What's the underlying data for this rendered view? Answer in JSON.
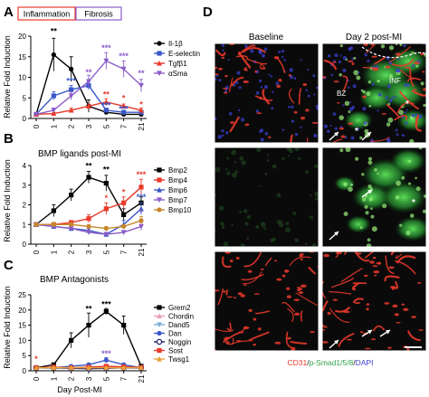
{
  "panels": {
    "A": {
      "letter": "A",
      "box_inflammation": "Inflammation",
      "box_fibrosis": "Fibrosis",
      "ylabel": "Relative Fold Induction"
    },
    "B": {
      "letter": "B",
      "title": "BMP ligands post-MI",
      "ylabel": "Relative Fold Induction"
    },
    "C": {
      "letter": "C",
      "title": "BMP Antagonists",
      "ylabel": "Relative Fold Induction",
      "xlabel": "Day Post-MI"
    },
    "D": {
      "letter": "D",
      "col_baseline": "Baseline",
      "col_day2": "Day 2 post-MI",
      "label_bz": "BZ",
      "label_inf": "INF",
      "caption_cd31": "CD31",
      "caption_sep1": "/",
      "caption_psmad": "p-Smad1/5/8",
      "caption_sep2": "/",
      "caption_dapi": "DAPI"
    }
  },
  "chart_data": [
    {
      "id": "A",
      "type": "line",
      "x": [
        0,
        1,
        2,
        3,
        5,
        7,
        21
      ],
      "ylim": [
        0,
        20
      ],
      "yticks": [
        0,
        5,
        10,
        15,
        20
      ],
      "xlabel": "",
      "ylabel": "Relative Fold Induction",
      "legend_position": "right",
      "series": [
        {
          "name": "Il-1β",
          "color": "#000000",
          "marker": "circle",
          "values": [
            1,
            15.5,
            12,
            3,
            1.5,
            1,
            1
          ],
          "errors": [
            0,
            4,
            3,
            1.5,
            0.5,
            0.3,
            0.3
          ]
        },
        {
          "name": "E-selectin",
          "color": "#3a57c9",
          "marker": "square",
          "values": [
            1,
            5.5,
            7,
            8,
            2,
            1.5,
            1.5
          ],
          "errors": [
            0,
            1,
            1,
            1,
            0.5,
            0.5,
            0.5
          ]
        },
        {
          "name": "Tgfβ1",
          "color": "#e8392a",
          "marker": "triangle",
          "values": [
            1,
            1.2,
            2,
            3,
            4,
            3,
            2
          ],
          "errors": [
            0,
            0.3,
            0.5,
            0.5,
            0.8,
            0.5,
            0.5
          ]
        },
        {
          "name": "αSma",
          "color": "#8b5cc8",
          "marker": "triangle-down",
          "values": [
            1,
            2,
            5.5,
            9,
            14,
            12,
            8
          ],
          "errors": [
            0,
            0.5,
            1,
            1.5,
            2,
            2,
            1.5
          ]
        }
      ],
      "annotations": [
        {
          "x": 1,
          "y": 20.5,
          "text": "**",
          "color": "#000000"
        },
        {
          "x": 2,
          "y": 8.5,
          "text": "***",
          "color": "#3a57c9"
        },
        {
          "x": 3,
          "y": 10.5,
          "text": "**",
          "color": "#8b5cc8"
        },
        {
          "x": 5,
          "y": 16.5,
          "text": "***",
          "color": "#8b5cc8"
        },
        {
          "x": 5,
          "y": 5.2,
          "text": "**",
          "color": "#e8392a"
        },
        {
          "x": 5,
          "y": 2.5,
          "text": "***",
          "color": "#3a57c9"
        },
        {
          "x": 7,
          "y": 14.5,
          "text": "***",
          "color": "#8b5cc8"
        },
        {
          "x": 7,
          "y": 4.3,
          "text": "*",
          "color": "#e8392a"
        },
        {
          "x": 7,
          "y": 1.7,
          "text": "***",
          "color": "#3a57c9"
        },
        {
          "x": 21,
          "y": 10.3,
          "text": "**",
          "color": "#8b5cc8"
        },
        {
          "x": 21,
          "y": 2.8,
          "text": "*",
          "color": "#e8392a"
        }
      ]
    },
    {
      "id": "B",
      "type": "line",
      "x": [
        0,
        1,
        2,
        3,
        5,
        7,
        21
      ],
      "ylim": [
        0,
        4
      ],
      "yticks": [
        0,
        1,
        2,
        3,
        4
      ],
      "xlabel": "",
      "ylabel": "Relative Fold Induction",
      "title": "BMP ligands post-MI",
      "legend_position": "right",
      "series": [
        {
          "name": "Bmp2",
          "color": "#000000",
          "marker": "square",
          "values": [
            1,
            1.7,
            2.5,
            3.4,
            3.1,
            1.5,
            2.1
          ],
          "errors": [
            0,
            0.3,
            0.3,
            0.3,
            0.4,
            0.3,
            0.3
          ]
        },
        {
          "name": "Bmp4",
          "color": "#e8392a",
          "marker": "square",
          "values": [
            1,
            1,
            1.1,
            1.3,
            1.8,
            2.1,
            2.9
          ],
          "errors": [
            0,
            0.1,
            0.1,
            0.2,
            0.3,
            0.3,
            0.4
          ]
        },
        {
          "name": "Bmp6",
          "color": "#3a57c9",
          "marker": "triangle",
          "values": [
            1,
            0.9,
            0.8,
            0.7,
            0.5,
            1.0,
            1.8
          ],
          "errors": [
            0,
            0.1,
            0.1,
            0.1,
            0.1,
            0.2,
            0.3
          ]
        },
        {
          "name": "Bmp7",
          "color": "#8b5cc8",
          "marker": "triangle-down",
          "values": [
            1,
            0.9,
            0.8,
            0.6,
            0.5,
            0.6,
            0.9
          ],
          "errors": [
            0,
            0.1,
            0.1,
            0.1,
            0.1,
            0.1,
            0.2
          ]
        },
        {
          "name": "Bmp10",
          "color": "#c8872d",
          "marker": "circle",
          "values": [
            1,
            1,
            1,
            0.9,
            0.8,
            0.9,
            1.2
          ],
          "errors": [
            0,
            0.1,
            0.1,
            0.1,
            0.1,
            0.1,
            0.2
          ]
        }
      ],
      "annotations": [
        {
          "x": 3,
          "y": 3.85,
          "text": "**",
          "color": "#000000"
        },
        {
          "x": 5,
          "y": 3.65,
          "text": "**",
          "color": "#000000"
        },
        {
          "x": 5,
          "y": 2.2,
          "text": "*",
          "color": "#e8392a"
        },
        {
          "x": 7,
          "y": 2.5,
          "text": "*",
          "color": "#e8392a"
        },
        {
          "x": 21,
          "y": 3.4,
          "text": "***",
          "color": "#e8392a"
        },
        {
          "x": 21,
          "y": 2.25,
          "text": "***",
          "color": "#3a57c9"
        },
        {
          "x": 21,
          "y": 1.5,
          "text": "*",
          "color": "#8b5cc8"
        }
      ]
    },
    {
      "id": "C",
      "type": "line",
      "x": [
        0,
        1,
        2,
        3,
        5,
        7,
        21
      ],
      "ylim": [
        0,
        25
      ],
      "yticks": [
        0,
        5,
        10,
        15,
        20,
        25
      ],
      "xlabel": "Day Post-MI",
      "ylabel": "Relative Fold Induction",
      "title": "BMP Antagonists",
      "legend_position": "right",
      "series": [
        {
          "name": "Grem2",
          "color": "#000000",
          "marker": "square",
          "values": [
            1,
            2,
            10,
            15,
            19.5,
            15,
            1.5
          ],
          "errors": [
            0,
            0.5,
            2.5,
            4,
            1,
            3,
            0.5
          ]
        },
        {
          "name": "Chordin",
          "color": "#e8a0b4",
          "marker": "triangle",
          "values": [
            1,
            1,
            1,
            1,
            1.2,
            1,
            1
          ],
          "errors": [
            0,
            0.2,
            0.2,
            0.2,
            0.3,
            0.2,
            0.2
          ]
        },
        {
          "name": "Dand5",
          "color": "#7fb0d8",
          "marker": "triangle-down",
          "values": [
            1,
            0.8,
            0.9,
            1,
            1,
            0.9,
            0.8
          ],
          "errors": [
            0,
            0.2,
            0.2,
            0.2,
            0.2,
            0.2,
            0.2
          ]
        },
        {
          "name": "Dan",
          "color": "#3a57c9",
          "marker": "circle",
          "values": [
            1,
            1,
            1.5,
            2,
            3.5,
            2,
            1
          ],
          "errors": [
            0,
            0.3,
            0.4,
            0.5,
            0.8,
            0.5,
            0.3
          ]
        },
        {
          "name": "Noggin",
          "color": "#1a1a66",
          "marker": "circle-open",
          "values": [
            1,
            1,
            0.8,
            0.7,
            0.8,
            1,
            1
          ],
          "errors": [
            0,
            0.2,
            0.2,
            0.2,
            0.2,
            0.2,
            0.2
          ]
        },
        {
          "name": "Sost",
          "color": "#e8392a",
          "marker": "square",
          "values": [
            1,
            1.2,
            1,
            1.2,
            1.5,
            1.3,
            1.1
          ],
          "errors": [
            0,
            0.5,
            0.3,
            0.3,
            0.4,
            0.3,
            0.3
          ]
        },
        {
          "name": "Twsg1",
          "color": "#e8a03a",
          "marker": "triangle",
          "values": [
            1,
            1,
            1,
            1,
            1,
            1,
            1
          ],
          "errors": [
            0,
            0.2,
            0.2,
            0.2,
            0.2,
            0.2,
            0.2
          ]
        }
      ],
      "annotations": [
        {
          "x": 3,
          "y": 19.5,
          "text": "**",
          "color": "#000000"
        },
        {
          "x": 5,
          "y": 21,
          "text": "***",
          "color": "#000000"
        },
        {
          "x": 5,
          "y": 4.8,
          "text": "***",
          "color": "#8b5cc8"
        },
        {
          "x": 0,
          "y": 3,
          "text": "*",
          "color": "#e8392a"
        }
      ]
    }
  ],
  "colors": {
    "cd31": "#e8392a",
    "psmad": "#2fb34a",
    "dapi": "#3a3fcf",
    "tissue_bg": "#0a0a0a"
  },
  "icons": {
    "scale_bar": "scale-bar"
  }
}
